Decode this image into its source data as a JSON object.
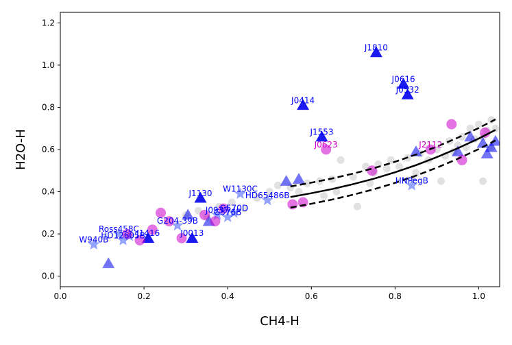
{
  "chart_data": {
    "type": "scatter",
    "title": "",
    "xlabel": "CH4-H",
    "ylabel": "H2O-H",
    "xlim": [
      0.0,
      1.05
    ],
    "ylim": [
      -0.05,
      1.25
    ],
    "grid": false,
    "xticks": [
      0.0,
      0.2,
      0.4,
      0.6,
      0.8,
      1.0
    ],
    "xtick_labels": [
      "0.0",
      "0.2",
      "0.4",
      "0.6",
      "0.8",
      "1.0"
    ],
    "yticks": [
      0.0,
      0.2,
      0.4,
      0.6,
      0.8,
      1.0,
      1.2
    ],
    "ytick_labels": [
      "0.0",
      "0.2",
      "0.4",
      "0.6",
      "0.8",
      "1.0",
      "1.2"
    ],
    "colors": {
      "comparison": "#a9a9a9",
      "triangle": "#0000ee",
      "star": "#3d5afe",
      "circle": "#cc00cc",
      "fit": "#000000",
      "label_blue": "#0000ff",
      "label_magenta": "#cc00cc"
    },
    "fit_curve": {
      "name": "polynomial fit",
      "x": [
        0.55,
        0.6,
        0.65,
        0.7,
        0.75,
        0.8,
        0.85,
        0.9,
        0.95,
        1.0,
        1.04
      ],
      "y": [
        0.375,
        0.393,
        0.413,
        0.436,
        0.462,
        0.492,
        0.526,
        0.564,
        0.606,
        0.652,
        0.693
      ],
      "band": 0.05
    },
    "series": [
      {
        "name": "comparison objects",
        "marker": "circle",
        "color": "#a9a9a9",
        "points": [
          {
            "x": 0.3,
            "y": 0.29
          },
          {
            "x": 0.33,
            "y": 0.31
          },
          {
            "x": 0.35,
            "y": 0.28
          },
          {
            "x": 0.38,
            "y": 0.33
          },
          {
            "x": 0.41,
            "y": 0.35
          },
          {
            "x": 0.44,
            "y": 0.32
          },
          {
            "x": 0.47,
            "y": 0.37
          },
          {
            "x": 0.5,
            "y": 0.4
          },
          {
            "x": 0.52,
            "y": 0.43
          },
          {
            "x": 0.55,
            "y": 0.42
          },
          {
            "x": 0.57,
            "y": 0.4
          },
          {
            "x": 0.59,
            "y": 0.44
          },
          {
            "x": 0.62,
            "y": 0.45
          },
          {
            "x": 0.63,
            "y": 0.38
          },
          {
            "x": 0.65,
            "y": 0.46
          },
          {
            "x": 0.67,
            "y": 0.55
          },
          {
            "x": 0.7,
            "y": 0.47
          },
          {
            "x": 0.71,
            "y": 0.33
          },
          {
            "x": 0.73,
            "y": 0.52
          },
          {
            "x": 0.75,
            "y": 0.49
          },
          {
            "x": 0.76,
            "y": 0.53
          },
          {
            "x": 0.78,
            "y": 0.51
          },
          {
            "x": 0.79,
            "y": 0.55
          },
          {
            "x": 0.81,
            "y": 0.52
          },
          {
            "x": 0.83,
            "y": 0.56
          },
          {
            "x": 0.85,
            "y": 0.49
          },
          {
            "x": 0.86,
            "y": 0.58
          },
          {
            "x": 0.88,
            "y": 0.55
          },
          {
            "x": 0.9,
            "y": 0.6
          },
          {
            "x": 0.91,
            "y": 0.45
          },
          {
            "x": 0.92,
            "y": 0.57
          },
          {
            "x": 0.93,
            "y": 0.64
          },
          {
            "x": 0.94,
            "y": 0.59
          },
          {
            "x": 0.95,
            "y": 0.62
          },
          {
            "x": 0.96,
            "y": 0.66
          },
          {
            "x": 0.97,
            "y": 0.61
          },
          {
            "x": 0.98,
            "y": 0.7
          },
          {
            "x": 0.99,
            "y": 0.65
          },
          {
            "x": 1.0,
            "y": 0.72
          },
          {
            "x": 1.01,
            "y": 0.66
          },
          {
            "x": 1.02,
            "y": 0.69
          },
          {
            "x": 1.03,
            "y": 0.74
          },
          {
            "x": 1.04,
            "y": 0.7
          },
          {
            "x": 1.01,
            "y": 0.45
          },
          {
            "x": 1.03,
            "y": 0.61
          },
          {
            "x": 0.66,
            "y": 0.4
          },
          {
            "x": 0.74,
            "y": 0.44
          },
          {
            "x": 0.84,
            "y": 0.46
          }
        ]
      },
      {
        "name": "triangles",
        "marker": "triangle",
        "color": "#0000ee",
        "points": [
          {
            "x": 0.755,
            "y": 1.06,
            "label": "J1810",
            "label_color": "#0000ff"
          },
          {
            "x": 0.82,
            "y": 0.91,
            "label": "J0616",
            "label_color": "#0000ff"
          },
          {
            "x": 0.83,
            "y": 0.86,
            "label": "J0532",
            "label_color": "#0000ff"
          },
          {
            "x": 0.58,
            "y": 0.81,
            "label": "J0414",
            "label_color": "#0000ff"
          },
          {
            "x": 0.625,
            "y": 0.66,
            "label": "J1553",
            "label_color": "#0000ff"
          },
          {
            "x": 0.335,
            "y": 0.37,
            "label": "J1130",
            "label_color": "#0000ff"
          },
          {
            "x": 0.315,
            "y": 0.18,
            "label": "J0013",
            "label_color": "#0000ff"
          },
          {
            "x": 0.21,
            "y": 0.18,
            "label": "J1416",
            "label_color": "#0000ff"
          },
          {
            "x": 0.115,
            "y": 0.06
          },
          {
            "x": 0.355,
            "y": 0.26
          },
          {
            "x": 0.305,
            "y": 0.29
          },
          {
            "x": 0.98,
            "y": 0.66
          },
          {
            "x": 1.01,
            "y": 0.63
          },
          {
            "x": 1.03,
            "y": 0.61
          },
          {
            "x": 1.04,
            "y": 0.64
          },
          {
            "x": 1.02,
            "y": 0.58
          },
          {
            "x": 0.95,
            "y": 0.59
          },
          {
            "x": 0.85,
            "y": 0.59
          },
          {
            "x": 0.57,
            "y": 0.46
          },
          {
            "x": 0.54,
            "y": 0.45
          }
        ]
      },
      {
        "name": "stars",
        "marker": "star",
        "color": "#3d5afe",
        "points": [
          {
            "x": 0.43,
            "y": 0.39,
            "label": "W1130C",
            "label_color": "#0000ff"
          },
          {
            "x": 0.495,
            "y": 0.36,
            "label": "HD65486B",
            "label_color": "#0000ff"
          },
          {
            "x": 0.84,
            "y": 0.43,
            "label": "HNPegB",
            "label_color": "#0000ff"
          },
          {
            "x": 0.08,
            "y": 0.15,
            "label": "W940B",
            "label_color": "#0000ff"
          },
          {
            "x": 0.375,
            "y": 0.29,
            "label": "J0937",
            "label_color": "#0000ff"
          },
          {
            "x": 0.4,
            "y": 0.28,
            "label": "G576B",
            "label_color": "#0000ff"
          },
          {
            "x": 0.415,
            "y": 0.3,
            "label": "G570D",
            "label_color": "#0000ff"
          },
          {
            "x": 0.15,
            "y": 0.17,
            "label": "HD12605B",
            "label_color": "#0000ff"
          },
          {
            "x": 0.14,
            "y": 0.2,
            "label": "Ross458C",
            "label_color": "#0000ff"
          },
          {
            "x": 0.28,
            "y": 0.24,
            "label": "G204-39B",
            "label_color": "#0000ff"
          },
          {
            "x": 0.165,
            "y": 0.19
          }
        ]
      },
      {
        "name": "circles",
        "marker": "circle",
        "color": "#cc00cc",
        "points": [
          {
            "x": 0.635,
            "y": 0.6,
            "label": "J0623",
            "label_color": "#cc00cc"
          },
          {
            "x": 0.885,
            "y": 0.6,
            "label": "J2112",
            "label_color": "#cc00cc"
          },
          {
            "x": 0.935,
            "y": 0.72
          },
          {
            "x": 0.745,
            "y": 0.5
          },
          {
            "x": 1.015,
            "y": 0.68
          },
          {
            "x": 0.24,
            "y": 0.3
          },
          {
            "x": 0.26,
            "y": 0.26
          },
          {
            "x": 0.22,
            "y": 0.22
          },
          {
            "x": 0.19,
            "y": 0.17
          },
          {
            "x": 0.29,
            "y": 0.18
          },
          {
            "x": 0.37,
            "y": 0.26
          },
          {
            "x": 0.345,
            "y": 0.29
          },
          {
            "x": 0.39,
            "y": 0.32
          },
          {
            "x": 0.555,
            "y": 0.34
          },
          {
            "x": 0.58,
            "y": 0.35
          },
          {
            "x": 0.16,
            "y": 0.2
          },
          {
            "x": 0.96,
            "y": 0.55
          }
        ]
      }
    ]
  }
}
